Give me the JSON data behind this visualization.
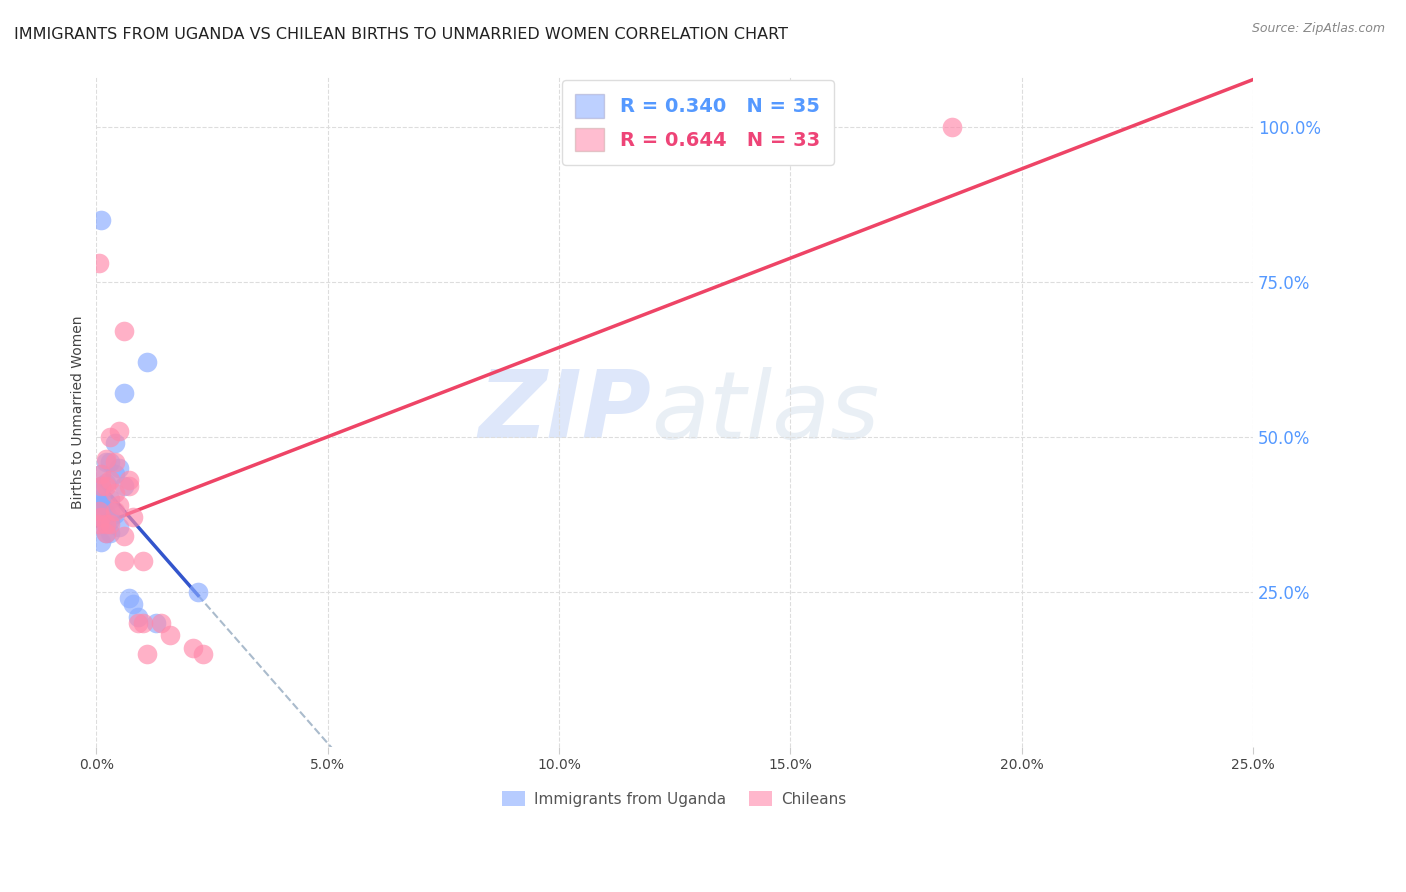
{
  "title": "IMMIGRANTS FROM UGANDA VS CHILEAN BIRTHS TO UNMARRIED WOMEN CORRELATION CHART",
  "source": "Source: ZipAtlas.com",
  "ylabel": "Births to Unmarried Women",
  "right_ytick_labels": [
    "25.0%",
    "50.0%",
    "75.0%",
    "100.0%"
  ],
  "right_ytick_values": [
    0.25,
    0.5,
    0.75,
    1.0
  ],
  "bottom_xtick_labels": [
    "0.0%",
    "5.0%",
    "10.0%",
    "15.0%",
    "20.0%",
    "25.0%"
  ],
  "bottom_xtick_values": [
    0.0,
    0.05,
    0.1,
    0.15,
    0.2,
    0.25
  ],
  "xlim": [
    0.0,
    0.25
  ],
  "ylim": [
    0.0,
    1.08
  ],
  "blue_color": "#88AAFF",
  "pink_color": "#FF88AA",
  "blue_line_color": "#3355CC",
  "pink_line_color": "#EE4466",
  "grey_dash_color": "#AABBCC",
  "blue_R": 0.34,
  "blue_N": 35,
  "pink_R": 0.644,
  "pink_N": 33,
  "legend_label_blue": "Immigrants from Uganda",
  "legend_label_pink": "Chileans",
  "watermark_zip": "ZIP",
  "watermark_atlas": "atlas",
  "blue_scatter_x": [
    0.001,
    0.001,
    0.001,
    0.001,
    0.001,
    0.0005,
    0.0005,
    0.0005,
    0.0005,
    0.002,
    0.002,
    0.002,
    0.002,
    0.002,
    0.002,
    0.003,
    0.003,
    0.003,
    0.003,
    0.003,
    0.004,
    0.004,
    0.004,
    0.005,
    0.005,
    0.006,
    0.006,
    0.007,
    0.008,
    0.009,
    0.011,
    0.013,
    0.022,
    0.001,
    0.001
  ],
  "blue_scatter_y": [
    0.37,
    0.39,
    0.4,
    0.42,
    0.44,
    0.36,
    0.38,
    0.395,
    0.415,
    0.345,
    0.36,
    0.375,
    0.395,
    0.425,
    0.46,
    0.345,
    0.365,
    0.38,
    0.4,
    0.46,
    0.375,
    0.44,
    0.49,
    0.355,
    0.45,
    0.42,
    0.57,
    0.24,
    0.23,
    0.21,
    0.62,
    0.2,
    0.25,
    0.85,
    0.33
  ],
  "pink_scatter_x": [
    0.0005,
    0.0005,
    0.0005,
    0.001,
    0.001,
    0.001,
    0.002,
    0.002,
    0.002,
    0.002,
    0.003,
    0.003,
    0.003,
    0.004,
    0.004,
    0.004,
    0.005,
    0.005,
    0.006,
    0.006,
    0.006,
    0.007,
    0.007,
    0.008,
    0.009,
    0.01,
    0.01,
    0.011,
    0.014,
    0.016,
    0.021,
    0.023,
    0.185
  ],
  "pink_scatter_y": [
    0.36,
    0.38,
    0.78,
    0.37,
    0.42,
    0.44,
    0.345,
    0.36,
    0.42,
    0.465,
    0.36,
    0.43,
    0.5,
    0.38,
    0.41,
    0.46,
    0.39,
    0.51,
    0.3,
    0.34,
    0.67,
    0.42,
    0.43,
    0.37,
    0.2,
    0.2,
    0.3,
    0.15,
    0.2,
    0.18,
    0.16,
    0.15,
    1.0
  ],
  "background_color": "#FFFFFF",
  "grid_color": "#DDDDDD",
  "title_fontsize": 11.5,
  "axis_label_fontsize": 10,
  "tick_label_color_right": "#5599FF",
  "legend_R_color_blue": "#5599FF",
  "legend_R_color_pink": "#EE4477"
}
